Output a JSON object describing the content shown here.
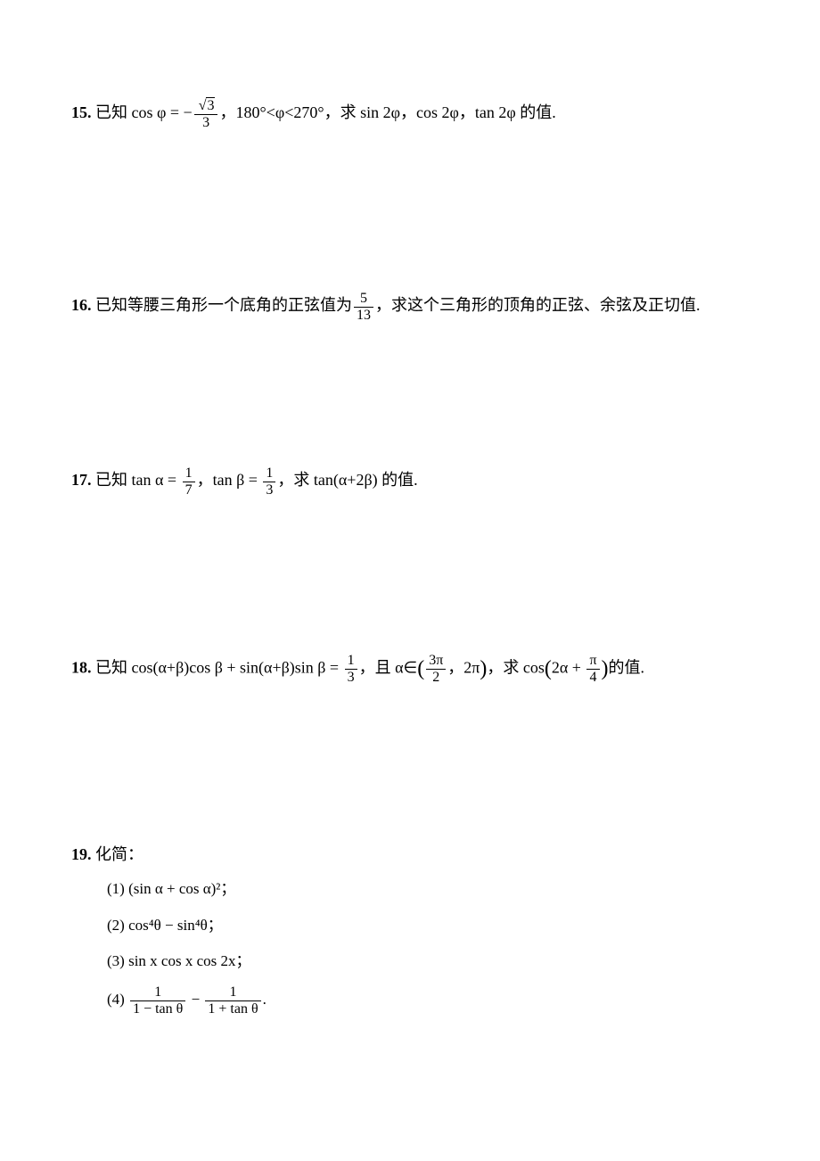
{
  "page": {
    "background_color": "#ffffff",
    "text_color": "#000000",
    "base_fontsize": 18,
    "font_family": "SimSun"
  },
  "problems": {
    "p15": {
      "num": "15.",
      "prefix": "已知 cos φ = ",
      "neg": "−",
      "frac_num": "√3",
      "frac_den": "3",
      "range": "，180°<φ<270°，求 sin 2φ，cos 2φ，tan 2φ 的值."
    },
    "p16": {
      "num": "16.",
      "prefix": "已知等腰三角形一个底角的正弦值为",
      "frac_num": "5",
      "frac_den": "13",
      "suffix": "，求这个三角形的顶角的正弦、余弦及正切值."
    },
    "p17": {
      "num": "17.",
      "prefix": "已知 tan α = ",
      "frac1_num": "1",
      "frac1_den": "7",
      "mid": "，tan β = ",
      "frac2_num": "1",
      "frac2_den": "3",
      "suffix": "，求 tan(α+2β) 的值."
    },
    "p18": {
      "num": "18.",
      "prefix": "已知 cos(α+β)cos β + sin(α+β)sin β = ",
      "frac1_num": "1",
      "frac1_den": "3",
      "mid1": "，且 α∈",
      "interval_frac_num": "3π",
      "interval_frac_den": "2",
      "interval_end": "，2π",
      "mid2": "，求 cos",
      "arg_prefix": "2α + ",
      "arg_frac_num": "π",
      "arg_frac_den": "4",
      "suffix": "的值."
    },
    "p19": {
      "num": "19.",
      "title": "化简：",
      "item1_label": "(1)",
      "item1_text": "(sin α + cos α)²；",
      "item2_label": "(2)",
      "item2_text": "cos⁴θ − sin⁴θ；",
      "item3_label": "(3)",
      "item3_text": "sin x cos x cos 2x；",
      "item4_label": "(4)",
      "item4_f1_num": "1",
      "item4_f1_den": "1 − tan θ",
      "item4_minus": " − ",
      "item4_f2_num": "1",
      "item4_f2_den": "1 + tan θ",
      "item4_end": "."
    }
  }
}
